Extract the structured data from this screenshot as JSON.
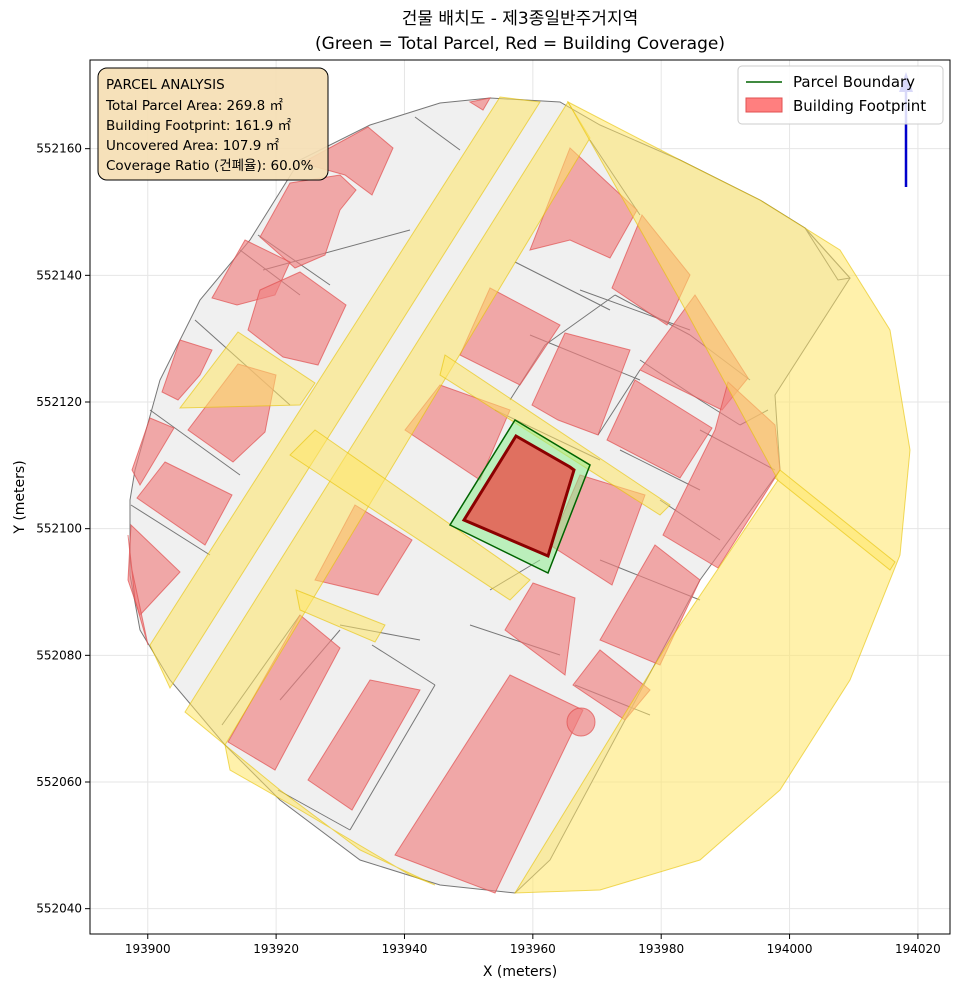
{
  "title": {
    "line1": "건물 배치도 - 제3종일반주거지역",
    "line2": "(Green = Total Parcel, Red = Building Coverage)"
  },
  "axes": {
    "xlabel": "X (meters)",
    "ylabel": "Y (meters)",
    "xlim": [
      193891,
      194025
    ],
    "ylim": [
      552036,
      552174
    ],
    "xticks": [
      193900,
      193920,
      193940,
      193960,
      193980,
      194000,
      194020
    ],
    "yticks": [
      552040,
      552060,
      552080,
      552100,
      552120,
      552140,
      552160
    ],
    "grid": true
  },
  "legend": {
    "position": "top-right",
    "items": [
      {
        "label": "Parcel Boundary",
        "kind": "line",
        "color": "#006400"
      },
      {
        "label": "Building Footprint",
        "kind": "patch",
        "color": "#ff7f7f"
      }
    ]
  },
  "info_box": {
    "heading": "PARCEL ANALYSIS",
    "lines": [
      "Total Parcel Area: 269.8 ㎡",
      "Building Footprint: 161.9 ㎡",
      "Uncovered Area: 107.9 ㎡",
      "Coverage Ratio (건폐율): 60.0%"
    ]
  },
  "colors": {
    "parcel_fill": "#f0f0f0",
    "parcel_edge": "#777777",
    "building": "#f08080",
    "road": "#ffe566",
    "target_parcel": "#90ee90",
    "target_edge": "#006400",
    "target_building": "#e07060",
    "target_building_edge": "#8b0000",
    "north_arrow": "#0000cc"
  }
}
